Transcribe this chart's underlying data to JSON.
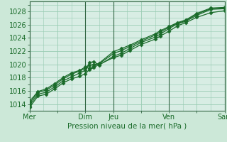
{
  "title": "",
  "xlabel": "Pression niveau de la mer( hPa )",
  "background_color": "#cce8d8",
  "plot_bg_color": "#d8ede4",
  "grid_color": "#99ccb3",
  "line_color": "#1a6b2a",
  "marker_color": "#1a6b2a",
  "ylim": [
    1013.0,
    1029.5
  ],
  "yticks": [
    1014,
    1016,
    1018,
    1020,
    1022,
    1024,
    1026,
    1028
  ],
  "xlim": [
    0,
    7.0
  ],
  "xtick_labels": [
    "Mer",
    "",
    "Dim",
    "Jeu",
    "",
    "Ven",
    "",
    "Sam"
  ],
  "xtick_positions": [
    0,
    1,
    2,
    3,
    4,
    5,
    6,
    7
  ],
  "day_vlines": [
    0,
    2,
    3,
    5,
    7
  ],
  "lines": [
    [
      1013.5,
      1015.2,
      1015.5,
      1016.3,
      1017.2,
      1017.8,
      1018.2,
      1018.6,
      1019.2,
      1019.5,
      1020.0,
      1021.0,
      1021.4,
      1022.1,
      1023.0,
      1023.8,
      1024.3,
      1025.0,
      1025.8,
      1026.3,
      1027.1,
      1027.8,
      1028.1
    ],
    [
      1013.8,
      1015.5,
      1015.8,
      1016.6,
      1017.5,
      1018.1,
      1018.7,
      1019.1,
      1020.3,
      1020.4,
      1019.9,
      1021.2,
      1021.7,
      1022.4,
      1023.3,
      1024.1,
      1024.6,
      1025.4,
      1026.1,
      1026.5,
      1027.4,
      1028.3,
      1028.4
    ],
    [
      1014.1,
      1015.8,
      1016.1,
      1016.9,
      1017.8,
      1018.5,
      1019.0,
      1019.4,
      1019.9,
      1020.0,
      1020.1,
      1021.6,
      1022.1,
      1022.7,
      1023.5,
      1024.4,
      1024.9,
      1025.6,
      1026.2,
      1026.6,
      1027.6,
      1028.4,
      1028.5
    ],
    [
      1014.4,
      1015.9,
      1016.3,
      1017.1,
      1018.0,
      1018.7,
      1019.1,
      1019.6,
      1019.4,
      1019.7,
      1020.2,
      1021.9,
      1022.4,
      1022.9,
      1023.7,
      1024.6,
      1025.1,
      1025.7,
      1026.3,
      1026.7,
      1027.7,
      1028.5,
      1028.6
    ]
  ],
  "x_values": [
    0,
    0.3,
    0.6,
    0.9,
    1.2,
    1.5,
    1.8,
    2.0,
    2.15,
    2.3,
    2.5,
    3.0,
    3.3,
    3.6,
    4.0,
    4.5,
    4.7,
    5.0,
    5.3,
    5.6,
    6.0,
    6.5,
    7.0
  ],
  "figsize": [
    3.2,
    2.0
  ],
  "dpi": 100,
  "xlabel_fontsize": 7.5,
  "tick_fontsize": 7
}
